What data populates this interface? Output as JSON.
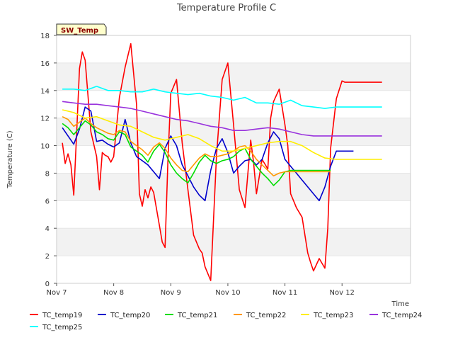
{
  "chart_data": {
    "type": "line",
    "title": "Temperature Profile C",
    "xlabel": "Time",
    "ylabel": "Temperature (C)",
    "badge": "SW_Temp",
    "ylim": [
      0,
      18
    ],
    "xlim": [
      0,
      6.2
    ],
    "y_ticks": [
      0,
      2,
      4,
      6,
      8,
      10,
      12,
      14,
      16,
      18
    ],
    "x_ticks": [
      {
        "value": 0,
        "label": "Nov 7"
      },
      {
        "value": 1,
        "label": "Nov 8"
      },
      {
        "value": 2,
        "label": "Nov 9"
      },
      {
        "value": 3,
        "label": "Nov 10"
      },
      {
        "value": 4,
        "label": "Nov 11"
      },
      {
        "value": 5,
        "label": "Nov 12"
      }
    ],
    "grid": "horizontal alternating bands",
    "legend_position": "bottom",
    "series": [
      {
        "name": "TC_temp19",
        "color": "#ff0000",
        "x": [
          0.1,
          0.15,
          0.2,
          0.25,
          0.3,
          0.35,
          0.4,
          0.45,
          0.5,
          0.6,
          0.7,
          0.75,
          0.8,
          0.85,
          0.9,
          0.95,
          1.0,
          1.1,
          1.2,
          1.3,
          1.4,
          1.45,
          1.5,
          1.55,
          1.6,
          1.65,
          1.7,
          1.8,
          1.85,
          1.9,
          1.95,
          2.0,
          2.1,
          2.2,
          2.3,
          2.4,
          2.5,
          2.55,
          2.6,
          2.7,
          2.8,
          2.9,
          3.0,
          3.1,
          3.2,
          3.3,
          3.4,
          3.45,
          3.5,
          3.6,
          3.7,
          3.75,
          3.8,
          3.9,
          4.0,
          4.05,
          4.1,
          4.15,
          4.2,
          4.3,
          4.4,
          4.45,
          4.5,
          4.6,
          4.7,
          4.75,
          4.8,
          4.9,
          5.0,
          5.05,
          5.1,
          5.2,
          5.3,
          5.35,
          5.4,
          5.45,
          5.5,
          5.6,
          5.65,
          5.7
        ],
        "values": [
          10.2,
          8.7,
          9.4,
          8.6,
          6.4,
          10.8,
          15.6,
          16.8,
          16.2,
          11.0,
          9.2,
          6.8,
          9.5,
          9.3,
          9.2,
          8.8,
          9.2,
          13.5,
          15.7,
          17.4,
          13.0,
          6.5,
          5.6,
          6.8,
          6.2,
          7.0,
          6.6,
          4.2,
          3.0,
          2.6,
          9.0,
          13.8,
          14.8,
          10.2,
          6.8,
          3.5,
          2.5,
          2.2,
          1.2,
          0.2,
          9.2,
          14.8,
          16.0,
          11.5,
          6.8,
          5.5,
          10.4,
          8.8,
          6.5,
          9.0,
          8.3,
          12.0,
          13.2,
          14.1,
          11.5,
          10.0,
          6.5,
          6.0,
          5.5,
          4.8,
          2.2,
          1.5,
          0.9,
          1.8,
          1.1,
          4.0,
          9.8,
          13.4,
          14.7,
          14.6,
          14.6,
          14.6,
          14.6,
          14.6,
          14.6,
          14.6,
          14.6,
          14.6,
          14.6,
          14.6
        ]
      },
      {
        "name": "TC_temp20",
        "color": "#0000cc",
        "x": [
          0.1,
          0.2,
          0.3,
          0.4,
          0.5,
          0.6,
          0.7,
          0.8,
          0.9,
          1.0,
          1.1,
          1.2,
          1.3,
          1.4,
          1.5,
          1.6,
          1.7,
          1.8,
          1.9,
          2.0,
          2.1,
          2.2,
          2.3,
          2.4,
          2.5,
          2.6,
          2.7,
          2.8,
          2.9,
          3.0,
          3.1,
          3.2,
          3.3,
          3.4,
          3.5,
          3.6,
          3.7,
          3.8,
          3.9,
          4.0,
          4.1,
          4.2,
          4.3,
          4.4,
          4.5,
          4.6,
          4.7,
          4.8,
          4.9,
          5.0,
          5.1,
          5.2
        ],
        "values": [
          11.3,
          10.7,
          10.1,
          11.2,
          12.8,
          12.5,
          10.3,
          10.4,
          10.1,
          9.9,
          10.2,
          11.9,
          10.2,
          9.2,
          8.9,
          8.6,
          8.1,
          7.6,
          9.8,
          10.7,
          10.0,
          8.6,
          7.8,
          7.0,
          6.4,
          6.0,
          8.2,
          9.8,
          10.5,
          9.5,
          8.0,
          8.5,
          8.9,
          9.0,
          8.6,
          9.0,
          10.2,
          11.0,
          10.5,
          9.0,
          8.5,
          8.0,
          7.5,
          7.0,
          6.5,
          6.0,
          7.0,
          8.5,
          9.6,
          9.6,
          9.6,
          9.6
        ]
      },
      {
        "name": "TC_temp21",
        "color": "#00dd00",
        "x": [
          0.1,
          0.2,
          0.3,
          0.4,
          0.5,
          0.6,
          0.7,
          0.8,
          0.9,
          1.0,
          1.1,
          1.2,
          1.3,
          1.4,
          1.5,
          1.6,
          1.7,
          1.8,
          1.9,
          2.0,
          2.1,
          2.2,
          2.3,
          2.4,
          2.5,
          2.6,
          2.7,
          2.8,
          2.9,
          3.0,
          3.1,
          3.2,
          3.3,
          3.4,
          3.5,
          3.6,
          3.7,
          3.8,
          3.9,
          4.0,
          4.1,
          4.2,
          4.3,
          4.4,
          4.5,
          4.6,
          4.7,
          4.8
        ],
        "values": [
          11.6,
          11.3,
          10.8,
          11.3,
          11.8,
          11.5,
          11.0,
          10.8,
          10.5,
          10.4,
          11.0,
          10.8,
          9.9,
          9.6,
          9.3,
          8.8,
          9.6,
          10.1,
          9.5,
          8.6,
          8.0,
          7.6,
          7.3,
          8.0,
          8.8,
          9.3,
          8.9,
          8.7,
          8.9,
          9.0,
          9.2,
          9.6,
          9.8,
          9.0,
          8.5,
          8.0,
          7.6,
          7.1,
          7.5,
          8.1,
          8.2,
          8.2,
          8.2,
          8.2,
          8.2,
          8.2,
          8.2,
          8.2
        ]
      },
      {
        "name": "TC_temp22",
        "color": "#ff9900",
        "x": [
          0.1,
          0.2,
          0.3,
          0.4,
          0.5,
          0.6,
          0.7,
          0.8,
          0.9,
          1.0,
          1.1,
          1.2,
          1.3,
          1.4,
          1.5,
          1.6,
          1.7,
          1.8,
          1.9,
          2.0,
          2.1,
          2.2,
          2.3,
          2.4,
          2.5,
          2.6,
          2.7,
          2.8,
          2.9,
          3.0,
          3.1,
          3.2,
          3.3,
          3.4,
          3.5,
          3.6,
          3.7,
          3.8,
          3.9,
          4.0,
          4.1,
          4.2,
          4.3,
          4.4,
          4.5,
          4.6,
          4.7,
          4.8
        ],
        "values": [
          12.1,
          11.9,
          11.4,
          11.7,
          12.0,
          11.6,
          11.3,
          11.1,
          10.9,
          10.8,
          11.1,
          11.0,
          10.3,
          10.0,
          9.7,
          9.3,
          9.9,
          10.2,
          9.8,
          9.1,
          8.6,
          8.2,
          8.1,
          8.6,
          9.1,
          9.4,
          9.2,
          9.2,
          9.3,
          9.4,
          9.6,
          9.9,
          10.0,
          9.6,
          9.0,
          8.6,
          8.2,
          7.8,
          8.0,
          8.1,
          8.1,
          8.1,
          8.1,
          8.1,
          8.1,
          8.1,
          8.1,
          8.1
        ]
      },
      {
        "name": "TC_temp23",
        "color": "#ffee00",
        "x": [
          0.1,
          0.3,
          0.5,
          0.7,
          0.9,
          1.1,
          1.3,
          1.5,
          1.7,
          1.9,
          2.1,
          2.3,
          2.5,
          2.7,
          2.9,
          3.1,
          3.3,
          3.5,
          3.7,
          3.9,
          4.1,
          4.3,
          4.5,
          4.7,
          4.9,
          5.1,
          5.3,
          5.5,
          5.7
        ],
        "values": [
          12.6,
          12.4,
          12.0,
          12.1,
          11.8,
          11.5,
          11.4,
          11.0,
          10.6,
          10.4,
          10.6,
          10.8,
          10.5,
          10.0,
          9.6,
          9.6,
          9.8,
          10.0,
          10.2,
          10.3,
          10.3,
          10.0,
          9.5,
          9.1,
          9.0,
          9.0,
          9.0,
          9.0,
          9.0
        ]
      },
      {
        "name": "TC_temp24",
        "color": "#9933dd",
        "x": [
          0.1,
          0.3,
          0.5,
          0.7,
          0.9,
          1.1,
          1.3,
          1.5,
          1.7,
          1.9,
          2.1,
          2.3,
          2.5,
          2.7,
          2.9,
          3.1,
          3.3,
          3.5,
          3.7,
          3.9,
          4.1,
          4.3,
          4.5,
          4.7,
          4.9,
          5.1,
          5.3,
          5.5,
          5.7
        ],
        "values": [
          13.2,
          13.1,
          13.0,
          13.0,
          12.9,
          12.8,
          12.7,
          12.5,
          12.3,
          12.1,
          11.9,
          11.8,
          11.6,
          11.4,
          11.3,
          11.1,
          11.1,
          11.2,
          11.3,
          11.2,
          11.0,
          10.8,
          10.7,
          10.7,
          10.7,
          10.7,
          10.7,
          10.7,
          10.7
        ]
      },
      {
        "name": "TC_temp25",
        "color": "#00ffff",
        "x": [
          0.1,
          0.3,
          0.5,
          0.7,
          0.9,
          1.1,
          1.3,
          1.5,
          1.7,
          1.9,
          2.1,
          2.3,
          2.5,
          2.7,
          2.9,
          3.1,
          3.3,
          3.5,
          3.7,
          3.9,
          4.1,
          4.3,
          4.5,
          4.7,
          4.9,
          5.1,
          5.3,
          5.5,
          5.7
        ],
        "values": [
          14.1,
          14.1,
          14.0,
          14.3,
          14.0,
          14.0,
          13.9,
          13.9,
          14.1,
          13.9,
          13.8,
          13.7,
          13.8,
          13.6,
          13.5,
          13.3,
          13.5,
          13.1,
          13.1,
          13.0,
          13.3,
          12.9,
          12.8,
          12.7,
          12.8,
          12.8,
          12.8,
          12.8,
          12.8
        ]
      }
    ]
  }
}
